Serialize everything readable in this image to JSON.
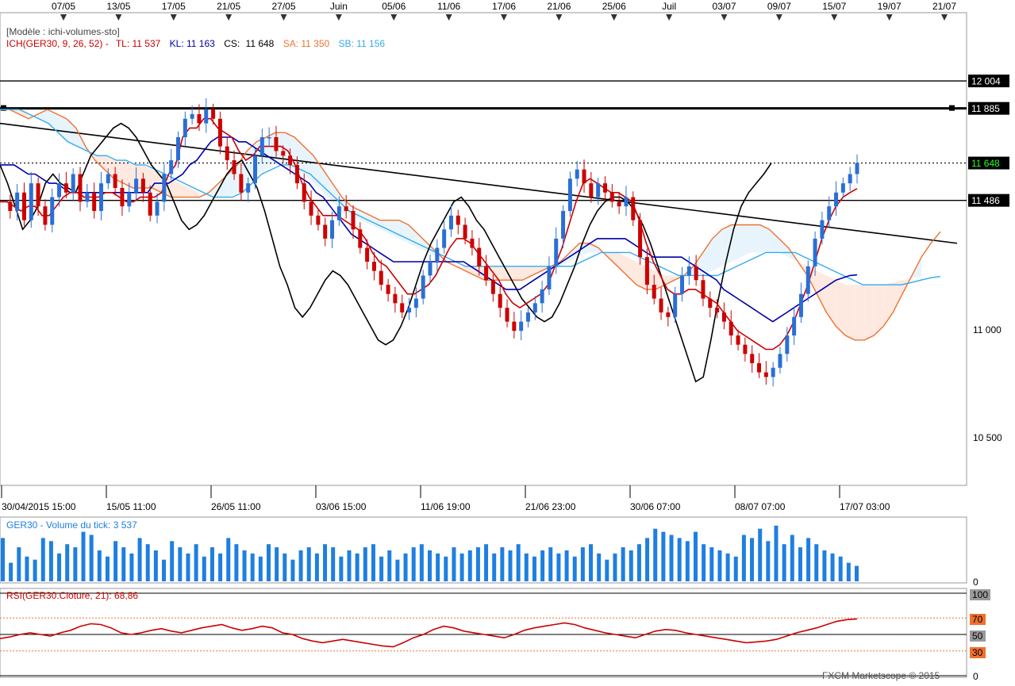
{
  "colors": {
    "candle_up": "#2a6fd6",
    "candle_down": "#cc0000",
    "tenkan": "#cc0000",
    "kijun": "#0000aa",
    "chikou": "#000000",
    "span_a": "#f07030",
    "span_b": "#33aaee",
    "volume": "#1e7fe0",
    "rsi": "#cc0000",
    "cloud_bull": "#e8f4fb",
    "cloud_bear": "#fde9e0",
    "price_badge_bg": "#000000",
    "current_badge_fg": "#22ff22"
  },
  "top_axis": {
    "labels": [
      "07/05",
      "13/05",
      "17/05",
      "21/05",
      "27/05",
      "Juin",
      "05/06",
      "11/06",
      "17/06",
      "21/06",
      "25/06",
      "Juil",
      "03/07",
      "09/07",
      "15/07",
      "19/07",
      "21/07"
    ]
  },
  "bottom_axis": {
    "labels": [
      "30/04/2015 15:00",
      "15/05 11:00",
      "26/05 11:00",
      "03/06 15:00",
      "11/06 19:00",
      "21/06 23:00",
      "30/06 07:00",
      "08/07 07:00",
      "17/07 03:00"
    ]
  },
  "legend": {
    "model": "[Modèle : ichi-volumes-sto]",
    "ich": "ICH(GER30, 9, 26, 52) -",
    "tl": "TL: 11 537",
    "kl": "KL: 11 163",
    "cs_label": "CS:",
    "cs_value": "11 648",
    "sa": "SA: 11 350",
    "sb": "SB: 11 156"
  },
  "price_badges": {
    "b1": "12 004",
    "b2": "11 885",
    "b3": "11 648",
    "b4": "11 486"
  },
  "y_ticks": {
    "t1": "11 000",
    "t2": "10 500"
  },
  "volume_panel": {
    "title": "GER30 - Volume du tick: 3 537",
    "zero": "0"
  },
  "rsi_panel": {
    "title": "RSI(GER30.Cloture, 21): 68,86",
    "t100": "100",
    "t70": "70",
    "t50": "50",
    "t30": "30",
    "t0": "0"
  },
  "credit": "FXCM Marketscope © 2015",
  "chart_data": {
    "type": "candlestick",
    "instrument": "GER30",
    "ylim": [
      10250,
      12300
    ],
    "horizontal_levels": [
      12004,
      11885,
      11648,
      11486
    ],
    "current_price": 11648,
    "trendline": {
      "from": 11820,
      "to": 11300
    },
    "price_path": [
      11480,
      11440,
      11520,
      11400,
      11560,
      11460,
      11380,
      11500,
      11560,
      11520,
      11600,
      11480,
      11520,
      11440,
      11560,
      11600,
      11540,
      11460,
      11520,
      11580,
      11520,
      11420,
      11480,
      11600,
      11660,
      11760,
      11840,
      11860,
      11820,
      11880,
      11840,
      11720,
      11660,
      11600,
      11520,
      11560,
      11680,
      11760,
      11760,
      11700,
      11680,
      11640,
      11560,
      11480,
      11420,
      11380,
      11320,
      11400,
      11460,
      11440,
      11360,
      11280,
      11220,
      11180,
      11120,
      11080,
      11040,
      11000,
      11020,
      11060,
      11160,
      11220,
      11280,
      11360,
      11420,
      11380,
      11320,
      11280,
      11200,
      11140,
      11080,
      11020,
      10960,
      10920,
      10960,
      11000,
      11040,
      11100,
      11200,
      11320,
      11440,
      11580,
      11620,
      11560,
      11500,
      11560,
      11520,
      11480,
      11460,
      11500,
      11400,
      11240,
      11120,
      11060,
      11000,
      10980,
      11080,
      11160,
      11200,
      11140,
      11060,
      11020,
      11000,
      10960,
      10900,
      10860,
      10820,
      10780,
      10740,
      10720,
      10760,
      10820,
      10900,
      10980,
      11080,
      11200,
      11320,
      11400,
      11460,
      11520,
      11560,
      11600,
      11648
    ],
    "tenkan": [
      11480,
      11480,
      11460,
      11440,
      11460,
      11460,
      11420,
      11420,
      11460,
      11500,
      11520,
      11520,
      11500,
      11500,
      11500,
      11520,
      11520,
      11500,
      11480,
      11480,
      11500,
      11500,
      11500,
      11520,
      11600,
      11640,
      11760,
      11800,
      11800,
      11840,
      11840,
      11800,
      11780,
      11760,
      11700,
      11660,
      11680,
      11720,
      11720,
      11720,
      11720,
      11700,
      11640,
      11560,
      11500,
      11460,
      11420,
      11420,
      11420,
      11400,
      11380,
      11360,
      11320,
      11260,
      11220,
      11200,
      11160,
      11120,
      11080,
      11080,
      11100,
      11120,
      11160,
      11220,
      11280,
      11320,
      11320,
      11300,
      11260,
      11220,
      11180,
      11140,
      11080,
      11040,
      11020,
      11040,
      11060,
      11080,
      11120,
      11200,
      11280,
      11380,
      11480,
      11560,
      11580,
      11560,
      11540,
      11520,
      11520,
      11500,
      11480,
      11400,
      11300,
      11220,
      11160,
      11100,
      11080,
      11080,
      11100,
      11100,
      11080,
      11060,
      11040,
      11000,
      10960,
      10920,
      10900,
      10880,
      10860,
      10840,
      10840,
      10860,
      10900,
      10960,
      11040,
      11120,
      11220,
      11320,
      11400,
      11460,
      11500,
      11520,
      11537
    ],
    "kijun": [
      11640,
      11640,
      11640,
      11620,
      11600,
      11600,
      11580,
      11560,
      11560,
      11540,
      11520,
      11520,
      11520,
      11520,
      11520,
      11520,
      11520,
      11520,
      11520,
      11520,
      11520,
      11520,
      11560,
      11560,
      11560,
      11580,
      11600,
      11640,
      11660,
      11700,
      11740,
      11760,
      11760,
      11760,
      11740,
      11740,
      11720,
      11700,
      11680,
      11660,
      11640,
      11620,
      11600,
      11580,
      11560,
      11520,
      11500,
      11460,
      11420,
      11380,
      11340,
      11320,
      11300,
      11280,
      11260,
      11240,
      11220,
      11220,
      11220,
      11220,
      11220,
      11220,
      11220,
      11220,
      11220,
      11220,
      11220,
      11200,
      11180,
      11160,
      11140,
      11120,
      11100,
      11100,
      11100,
      11120,
      11140,
      11160,
      11180,
      11200,
      11220,
      11240,
      11260,
      11280,
      11300,
      11320,
      11320,
      11320,
      11320,
      11320,
      11300,
      11280,
      11260,
      11240,
      11240,
      11240,
      11240,
      11240,
      11220,
      11200,
      11180,
      11160,
      11140,
      11100,
      11080,
      11060,
      11040,
      11020,
      11000,
      10980,
      10960,
      10980,
      11000,
      11020,
      11040,
      11060,
      11080,
      11100,
      11120,
      11140,
      11150,
      11160,
      11163
    ],
    "chikou": [
      11640,
      11560,
      11460,
      11360,
      11400,
      11460,
      11560,
      11600,
      11560,
      11540,
      11520,
      11600,
      11680,
      11720,
      11760,
      11800,
      11820,
      11800,
      11760,
      11700,
      11640,
      11600,
      11560,
      11480,
      11400,
      11360,
      11380,
      11420,
      11480,
      11540,
      11600,
      11640,
      11660,
      11600,
      11540,
      11440,
      11320,
      11200,
      11120,
      11020,
      10980,
      11020,
      11080,
      11140,
      11180,
      11160,
      11120,
      11060,
      11000,
      10940,
      10880,
      10860,
      10880,
      10940,
      11020,
      11120,
      11220,
      11300,
      11360,
      11420,
      11480,
      11500,
      11460,
      11400,
      11360,
      11300,
      11240,
      11180,
      11120,
      11060,
      11020,
      10980,
      10960,
      10980,
      11040,
      11120,
      11200,
      11300,
      11380,
      11440,
      11480,
      11500,
      11500,
      11480,
      11440,
      11380,
      11300,
      11200,
      11100,
      11000,
      10900,
      10800,
      10700,
      10720,
      10880,
      11060,
      11220,
      11360,
      11460,
      11520,
      11560,
      11600,
      11648
    ],
    "span_a": [
      11880,
      11880,
      11860,
      11840,
      11860,
      11880,
      11860,
      11840,
      11800,
      11720,
      11660,
      11620,
      11580,
      11560,
      11540,
      11540,
      11540,
      11520,
      11500,
      11500,
      11500,
      11500,
      11520,
      11560,
      11600,
      11640,
      11700,
      11740,
      11760,
      11780,
      11780,
      11760,
      11720,
      11680,
      11620,
      11560,
      11500,
      11460,
      11440,
      11420,
      11400,
      11400,
      11400,
      11380,
      11340,
      11300,
      11260,
      11220,
      11200,
      11180,
      11160,
      11140,
      11140,
      11140,
      11140,
      11140,
      11160,
      11180,
      11200,
      11220,
      11260,
      11300,
      11300,
      11280,
      11240,
      11200,
      11160,
      11120,
      11100,
      11100,
      11120,
      11140,
      11160,
      11200,
      11260,
      11320,
      11360,
      11380,
      11380,
      11380,
      11380,
      11360,
      11320,
      11280,
      11220,
      11160,
      11080,
      11000,
      10940,
      10900,
      10880,
      10880,
      10900,
      10940,
      11000,
      11080,
      11160,
      11240,
      11300,
      11350
    ],
    "span_b": [
      11880,
      11880,
      11880,
      11860,
      11840,
      11820,
      11780,
      11740,
      11720,
      11700,
      11680,
      11680,
      11660,
      11660,
      11640,
      11640,
      11620,
      11600,
      11580,
      11560,
      11540,
      11520,
      11500,
      11500,
      11500,
      11520,
      11560,
      11600,
      11620,
      11640,
      11640,
      11620,
      11600,
      11560,
      11520,
      11480,
      11440,
      11420,
      11400,
      11380,
      11360,
      11340,
      11320,
      11300,
      11280,
      11260,
      11240,
      11220,
      11200,
      11200,
      11200,
      11200,
      11200,
      11200,
      11200,
      11200,
      11200,
      11200,
      11200,
      11200,
      11220,
      11240,
      11260,
      11260,
      11260,
      11260,
      11240,
      11220,
      11200,
      11180,
      11160,
      11160,
      11160,
      11160,
      11160,
      11180,
      11200,
      11220,
      11240,
      11260,
      11260,
      11260,
      11260,
      11240,
      11220,
      11200,
      11180,
      11160,
      11140,
      11120,
      11120,
      11120,
      11120,
      11120,
      11130,
      11140,
      11150,
      11156
    ],
    "volume": [
      70,
      30,
      55,
      40,
      35,
      70,
      65,
      45,
      60,
      55,
      80,
      75,
      50,
      40,
      65,
      55,
      45,
      70,
      60,
      50,
      35,
      65,
      55,
      45,
      60,
      40,
      55,
      45,
      70,
      60,
      50,
      45,
      40,
      60,
      55,
      45,
      35,
      50,
      55,
      45,
      60,
      55,
      40,
      50,
      45,
      55,
      60,
      40,
      50,
      35,
      45,
      55,
      60,
      50,
      45,
      40,
      55,
      45,
      50,
      55,
      60,
      45,
      55,
      50,
      60,
      45,
      40,
      50,
      55,
      45,
      50,
      40,
      55,
      60,
      45,
      35,
      45,
      55,
      50,
      60,
      70,
      85,
      80,
      75,
      70,
      65,
      80,
      60,
      55,
      50,
      45,
      40,
      75,
      70,
      85,
      65,
      90,
      60,
      75,
      55,
      70,
      60,
      50,
      45,
      40,
      30,
      25
    ],
    "rsi": [
      45,
      47,
      50,
      52,
      50,
      48,
      52,
      55,
      60,
      63,
      62,
      58,
      52,
      50,
      52,
      55,
      57,
      54,
      52,
      55,
      58,
      60,
      62,
      58,
      55,
      57,
      60,
      58,
      52,
      50,
      45,
      42,
      40,
      42,
      44,
      42,
      40,
      38,
      36,
      35,
      40,
      46,
      50,
      56,
      60,
      58,
      54,
      52,
      50,
      48,
      46,
      50,
      55,
      58,
      60,
      62,
      64,
      62,
      58,
      55,
      52,
      50,
      48,
      46,
      50,
      54,
      56,
      55,
      52,
      50,
      48,
      46,
      44,
      42,
      40,
      41,
      42,
      44,
      48,
      52,
      55,
      58,
      62,
      66,
      68,
      68.86
    ]
  }
}
